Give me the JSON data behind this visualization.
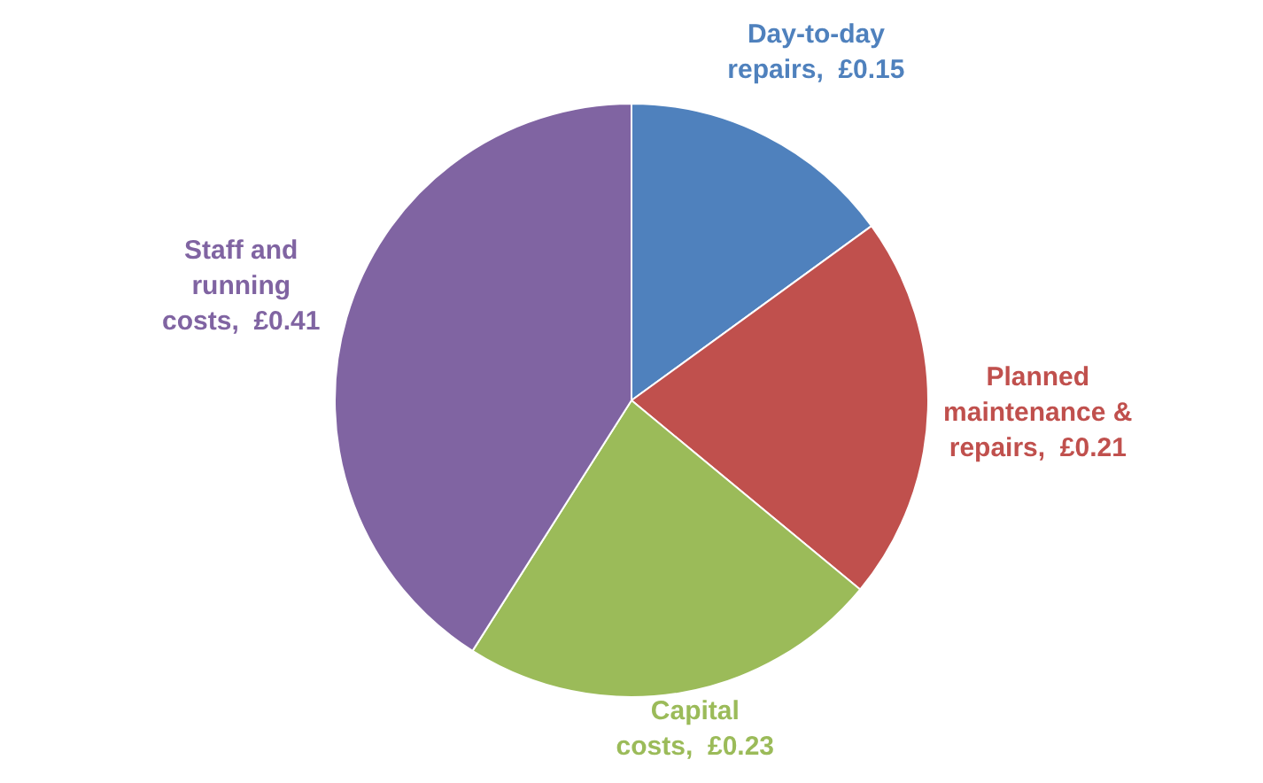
{
  "chart_data": {
    "type": "pie",
    "categories": [
      "Day-to-day repairs",
      "Planned maintenance & repairs",
      "Capital costs",
      "Staff and running costs"
    ],
    "values": [
      0.15,
      0.21,
      0.23,
      0.41
    ],
    "value_labels": [
      "£0.15",
      "£0.21",
      "£0.23",
      "£0.41"
    ],
    "colors": [
      "#4f81bd",
      "#c0504d",
      "#9bbb59",
      "#8064a2"
    ],
    "legend": false
  }
}
